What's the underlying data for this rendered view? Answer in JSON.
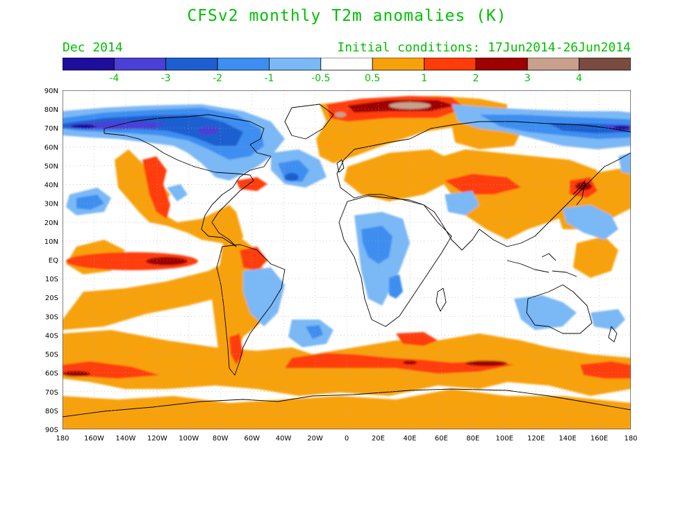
{
  "title": "CFSv2 monthly T2m anomalies (K)",
  "valid_month": "Dec 2014",
  "initial_conditions": "Initial conditions: 17Jun2014-26Jun2014",
  "colorbar": {
    "colors": [
      "#1f0d9c",
      "#4a3fd6",
      "#1d5fd0",
      "#3d8ef0",
      "#7ab8f6",
      "#ffffff",
      "#f7a20d",
      "#ff3c0a",
      "#9e0000",
      "#c8a08c",
      "#7a4b40"
    ],
    "labels": [
      "-4",
      "-3",
      "-2",
      "-1",
      "-0.5",
      "0.5",
      "1",
      "2",
      "3",
      "4"
    ]
  },
  "axes": {
    "lat_labels": [
      "90N",
      "80N",
      "70N",
      "60N",
      "50N",
      "40N",
      "30N",
      "20N",
      "10N",
      "EQ",
      "10S",
      "20S",
      "30S",
      "40S",
      "50S",
      "60S",
      "70S",
      "80S",
      "90S"
    ],
    "lon_labels": [
      "180",
      "160W",
      "140W",
      "120W",
      "100W",
      "80W",
      "60W",
      "40W",
      "20W",
      "0",
      "20E",
      "40E",
      "60E",
      "80E",
      "100E",
      "120E",
      "140E",
      "160E",
      "180"
    ]
  }
}
